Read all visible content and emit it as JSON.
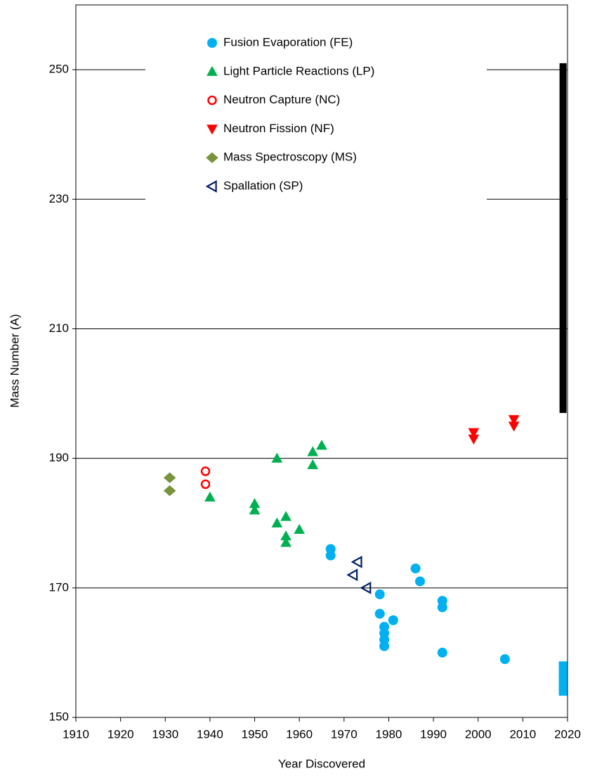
{
  "chart_data": {
    "type": "scatter",
    "x_label": "Year Discovered",
    "y_label": "Mass Number (A)",
    "xlim": [
      1910,
      2020
    ],
    "ylim": [
      150,
      260
    ],
    "xticks": [
      1910,
      1920,
      1930,
      1940,
      1950,
      1960,
      1970,
      1980,
      1990,
      2000,
      2010,
      2020
    ],
    "yticks": [
      150,
      170,
      190,
      210,
      230,
      250
    ],
    "grid": true,
    "series": [
      {
        "name": "Fusion Evaporation (FE)",
        "color": "#00b0f0",
        "marker": "circle",
        "x": [
          1967,
          1967,
          1978,
          1978,
          1979,
          1979,
          1979,
          1979,
          1981,
          1986,
          1987,
          1992,
          1992,
          1992,
          2006
        ],
        "values": [
          176,
          175,
          169,
          166,
          164,
          163,
          162,
          161,
          165,
          173,
          171,
          168,
          167,
          160,
          159
        ]
      },
      {
        "name": "Light Particle Reactions (LP)",
        "color": "#00b050",
        "marker": "triangle",
        "x": [
          1940,
          1950,
          1950,
          1955,
          1955,
          1957,
          1957,
          1957,
          1960,
          1963,
          1963,
          1965
        ],
        "values": [
          184,
          183,
          182,
          190,
          180,
          181,
          178,
          177,
          179,
          191,
          189,
          192
        ]
      },
      {
        "name": "Neutron Capture (NC)",
        "color": "#ff0000",
        "marker": "open-circle",
        "x": [
          1939,
          1939
        ],
        "values": [
          188,
          186
        ]
      },
      {
        "name": "Neutron Fission (NF)",
        "color": "#ff0000",
        "marker": "down-triangle",
        "x": [
          1999,
          1999,
          2008,
          2008
        ],
        "values": [
          194,
          193,
          196,
          195
        ]
      },
      {
        "name": "Mass Spectroscopy (MS)",
        "color": "#77933c",
        "marker": "diamond",
        "x": [
          1931,
          1931
        ],
        "values": [
          187,
          185
        ]
      },
      {
        "name": "Spallation (SP)",
        "color": "#002060",
        "marker": "open-left-triangle",
        "x": [
          1973,
          1972,
          1975
        ],
        "values": [
          174,
          172,
          170
        ]
      }
    ],
    "extra_points": {
      "color": "#00b0f0",
      "marker": "square",
      "x": [
        2019,
        2019,
        2019,
        2019,
        2019
      ],
      "values": [
        154,
        155,
        156,
        157,
        158
      ]
    },
    "ranges": [
      {
        "x": 2019,
        "low": 197,
        "high": 251,
        "color": "#000000"
      }
    ]
  }
}
